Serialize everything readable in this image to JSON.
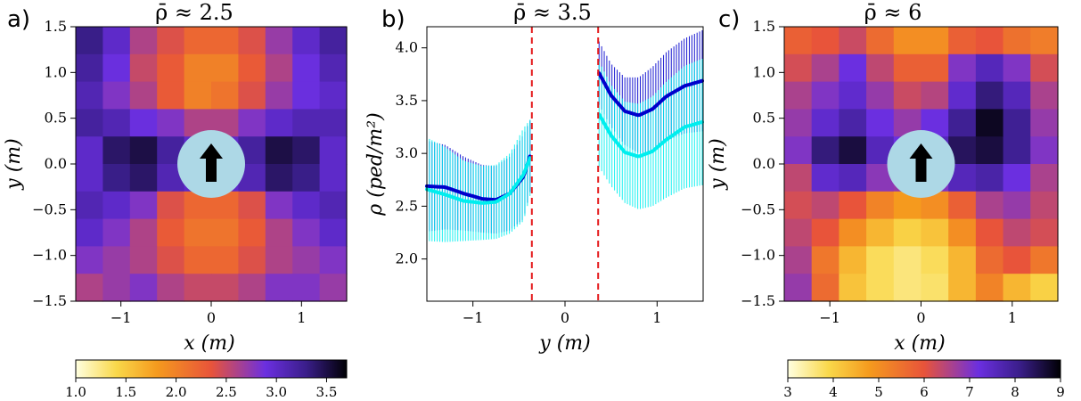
{
  "chart_data": [
    {
      "type": "heatmap",
      "panel_label": "a)",
      "title": "ρ̄ ≈ 2.5",
      "xlabel": "x (m)",
      "ylabel": "y (m)",
      "xlim": [
        -1.5,
        1.5
      ],
      "ylim": [
        -1.5,
        1.5
      ],
      "xticks": [
        "−1",
        "0",
        "1"
      ],
      "yticks": [
        "1.5",
        "1.0",
        "0.5",
        "0.0",
        "−0.5",
        "−1.0",
        "−1.5"
      ],
      "colorbar": {
        "range": [
          1.0,
          3.7
        ],
        "ticks": [
          "1.0",
          "1.5",
          "2.0",
          "2.5",
          "3.0",
          "3.5"
        ],
        "colormap": "inverted-plasma"
      },
      "marker": "obstacle-with-up-arrow",
      "data_rows_desc": "density grid, y from 1.5 down to -1.5, x from -1.5 to 1.5",
      "grid": [
        [
          3.3,
          3.0,
          2.6,
          2.4,
          2.2,
          2.2,
          2.4,
          2.7,
          3.0,
          3.2
        ],
        [
          3.2,
          2.9,
          2.5,
          2.3,
          2.0,
          2.0,
          2.3,
          2.6,
          2.9,
          3.1
        ],
        [
          3.1,
          2.8,
          2.6,
          2.3,
          2.0,
          2.1,
          2.4,
          2.7,
          2.9,
          3.0
        ],
        [
          3.2,
          3.1,
          2.9,
          2.8,
          2.6,
          2.6,
          2.8,
          3.0,
          3.1,
          3.1
        ],
        [
          3.0,
          3.4,
          3.5,
          3.2,
          3.0,
          3.0,
          3.2,
          3.5,
          3.4,
          3.0
        ],
        [
          3.0,
          3.3,
          3.4,
          3.1,
          3.0,
          3.0,
          3.1,
          3.4,
          3.3,
          3.0
        ],
        [
          3.1,
          3.0,
          2.8,
          2.4,
          2.2,
          2.2,
          2.4,
          2.8,
          3.0,
          3.1
        ],
        [
          3.0,
          2.8,
          2.6,
          2.3,
          2.1,
          2.1,
          2.3,
          2.6,
          2.8,
          3.0
        ],
        [
          2.8,
          2.7,
          2.6,
          2.4,
          2.2,
          2.2,
          2.4,
          2.6,
          2.7,
          2.8
        ],
        [
          2.6,
          2.7,
          2.8,
          2.6,
          2.5,
          2.5,
          2.6,
          2.8,
          2.8,
          2.7
        ]
      ]
    },
    {
      "type": "line",
      "panel_label": "b)",
      "title": "ρ̄ ≈ 3.5",
      "xlabel": "y (m)",
      "ylabel": "ρ (ped/m²)",
      "xlim": [
        -1.5,
        1.5
      ],
      "ylim": [
        1.6,
        4.2
      ],
      "xticks": [
        "−1",
        "0",
        "1"
      ],
      "yticks": [
        "4.0",
        "3.5",
        "3.0",
        "2.5",
        "2.0"
      ],
      "vlines": [
        -0.36,
        0.36
      ],
      "vline_color": "#e41a1c",
      "series": [
        {
          "color": "#0000cc",
          "segments": [
            {
              "x": [
                -1.5,
                -1.3,
                -1.1,
                -0.9,
                -0.75,
                -0.6,
                -0.45,
                -0.37
              ],
              "y": [
                2.69,
                2.68,
                2.62,
                2.57,
                2.56,
                2.62,
                2.78,
                3.0
              ],
              "err": [
                0.43,
                0.4,
                0.35,
                0.32,
                0.32,
                0.35,
                0.4,
                0.33
              ]
            },
            {
              "x": [
                0.37,
                0.5,
                0.65,
                0.8,
                0.95,
                1.1,
                1.3,
                1.5
              ],
              "y": [
                3.76,
                3.55,
                3.4,
                3.36,
                3.42,
                3.54,
                3.64,
                3.69
              ],
              "err": [
                0.3,
                0.3,
                0.32,
                0.36,
                0.4,
                0.42,
                0.45,
                0.48
              ]
            }
          ]
        },
        {
          "color": "#00eeee",
          "segments": [
            {
              "x": [
                -1.5,
                -1.3,
                -1.1,
                -0.9,
                -0.75,
                -0.6,
                -0.45,
                -0.37
              ],
              "y": [
                2.66,
                2.61,
                2.55,
                2.53,
                2.54,
                2.62,
                2.8,
                2.98
              ],
              "err": [
                0.49,
                0.45,
                0.38,
                0.35,
                0.35,
                0.38,
                0.44,
                0.35
              ]
            },
            {
              "x": [
                0.37,
                0.5,
                0.65,
                0.8,
                0.95,
                1.1,
                1.3,
                1.5
              ],
              "y": [
                3.37,
                3.17,
                3.01,
                2.97,
                3.02,
                3.13,
                3.25,
                3.3
              ],
              "err": [
                0.5,
                0.48,
                0.48,
                0.5,
                0.52,
                0.55,
                0.58,
                0.6
              ]
            }
          ]
        }
      ]
    },
    {
      "type": "heatmap",
      "panel_label": "c)",
      "title": "ρ̄ ≈ 6",
      "xlabel": "x (m)",
      "ylabel": "y (m)",
      "xlim": [
        -1.5,
        1.5
      ],
      "ylim": [
        -1.5,
        1.5
      ],
      "xticks": [
        "−1",
        "0",
        "1"
      ],
      "yticks": [
        "1.5",
        "1.0",
        "0.5",
        "0.0",
        "−0.5",
        "−1.0",
        "−1.5"
      ],
      "colorbar": {
        "range": [
          3,
          9
        ],
        "ticks": [
          "3",
          "4",
          "5",
          "6",
          "7",
          "8",
          "9"
        ],
        "colormap": "inverted-plasma"
      },
      "marker": "obstacle-with-up-arrow",
      "grid": [
        [
          5.8,
          6.0,
          6.3,
          5.6,
          5.0,
          5.0,
          5.8,
          6.0,
          5.5,
          5.3
        ],
        [
          6.2,
          6.6,
          7.2,
          6.4,
          5.8,
          5.8,
          7.0,
          7.6,
          7.0,
          6.2
        ],
        [
          6.6,
          7.0,
          7.4,
          6.8,
          6.3,
          6.5,
          7.4,
          8.2,
          7.6,
          6.6
        ],
        [
          6.8,
          7.4,
          7.8,
          7.2,
          6.8,
          7.2,
          8.0,
          8.8,
          8.0,
          6.8
        ],
        [
          7.0,
          8.2,
          8.6,
          7.6,
          7.2,
          7.6,
          8.4,
          8.6,
          8.0,
          7.0
        ],
        [
          6.4,
          7.4,
          7.6,
          6.9,
          6.8,
          7.0,
          7.6,
          7.8,
          7.2,
          6.6
        ],
        [
          6.2,
          6.4,
          6.0,
          5.2,
          4.8,
          5.0,
          5.8,
          6.6,
          6.8,
          6.4
        ],
        [
          6.4,
          6.0,
          5.0,
          4.4,
          4.0,
          4.2,
          5.0,
          6.0,
          6.4,
          6.2
        ],
        [
          6.6,
          5.4,
          4.4,
          3.8,
          3.6,
          3.8,
          4.4,
          5.6,
          6.0,
          5.4
        ],
        [
          6.8,
          5.6,
          4.2,
          3.8,
          3.6,
          3.7,
          4.4,
          5.2,
          4.4,
          4.0
        ]
      ]
    }
  ]
}
